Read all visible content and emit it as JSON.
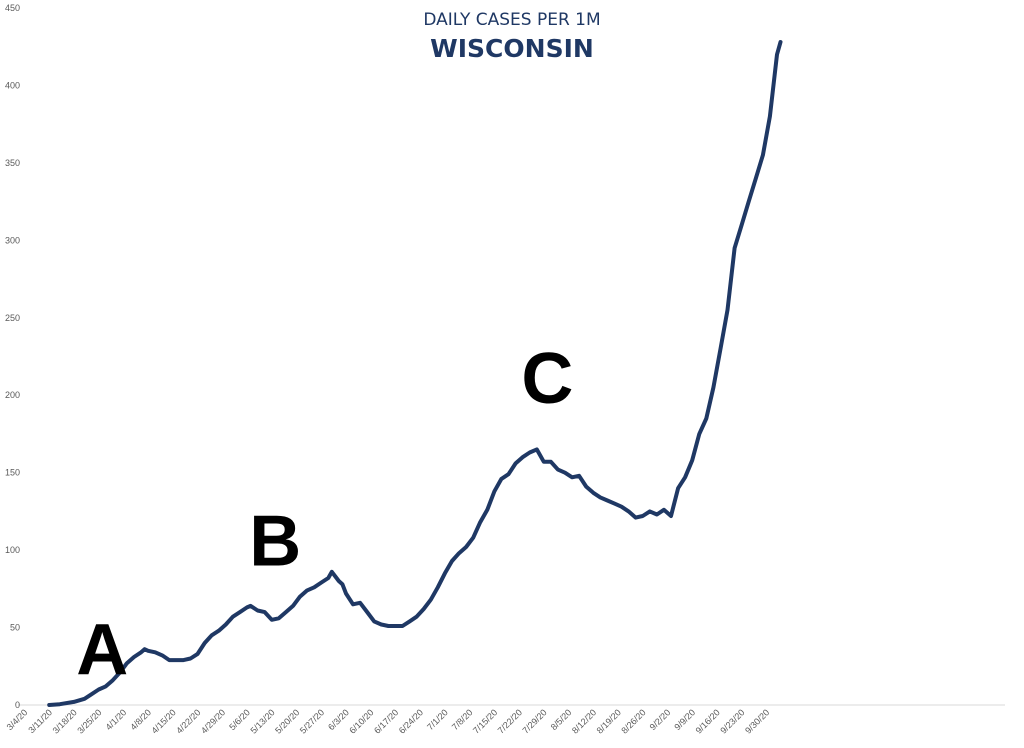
{
  "chart_data": {
    "type": "line",
    "title": "DAILY CASES PER 1M",
    "subtitle": "WISCONSIN",
    "ylim": [
      0,
      450
    ],
    "yticks": [
      0,
      50,
      100,
      150,
      200,
      250,
      300,
      350,
      400,
      450
    ],
    "x_tick_labels": [
      "3/4/20",
      "3/11/20",
      "3/18/20",
      "3/25/20",
      "4/1/20",
      "4/8/20",
      "4/15/20",
      "4/22/20",
      "4/29/20",
      "5/6/20",
      "5/13/20",
      "5/20/20",
      "5/27/20",
      "6/3/20",
      "6/10/20",
      "6/17/20",
      "6/24/20",
      "7/1/20",
      "7/8/20",
      "7/15/20",
      "7/22/20",
      "7/29/20",
      "8/5/20",
      "8/12/20",
      "8/19/20",
      "8/26/20",
      "9/2/20",
      "9/9/20",
      "9/16/20",
      "9/23/20",
      "9/30/20"
    ],
    "grid": false,
    "legend": "none",
    "line_color": "#1f3864",
    "annotations": [
      {
        "text": "A",
        "date": "3/25/20",
        "y": 20
      },
      {
        "text": "B",
        "date": "5/13/20",
        "y": 90
      },
      {
        "text": "C",
        "date": "7/29/20",
        "y": 195
      }
    ],
    "series": [
      {
        "x": [
          "3/10/20",
          "3/13/20",
          "3/17/20",
          "3/20/20",
          "3/22/20",
          "3/24/20",
          "3/26/20",
          "3/28/20",
          "3/30/20",
          "4/1/20",
          "4/3/20",
          "4/5/20",
          "4/6/20",
          "4/7/20",
          "4/9/20",
          "4/11/20",
          "4/13/20",
          "4/15/20",
          "4/17/20",
          "4/19/20",
          "4/21/20",
          "4/23/20",
          "4/25/20",
          "4/27/20",
          "4/29/20",
          "5/1/20",
          "5/3/20",
          "5/5/20",
          "5/6/20",
          "5/8/20",
          "5/10/20",
          "5/12/20",
          "5/14/20",
          "5/16/20",
          "5/18/20",
          "5/20/20",
          "5/22/20",
          "5/24/20",
          "5/26/20",
          "5/28/20",
          "5/29/20",
          "5/31/20",
          "6/1/20",
          "6/2/20",
          "6/4/20",
          "6/6/20",
          "6/8/20",
          "6/10/20",
          "6/12/20",
          "6/14/20",
          "6/16/20",
          "6/18/20",
          "6/20/20",
          "6/22/20",
          "6/24/20",
          "6/26/20",
          "6/28/20",
          "6/30/20",
          "7/2/20",
          "7/4/20",
          "7/6/20",
          "7/8/20",
          "7/10/20",
          "7/12/20",
          "7/14/20",
          "7/16/20",
          "7/18/20",
          "7/20/20",
          "7/22/20",
          "7/24/20",
          "7/26/20",
          "7/28/20",
          "7/30/20",
          "8/1/20",
          "8/3/20",
          "8/5/20",
          "8/7/20",
          "8/9/20",
          "8/11/20",
          "8/13/20",
          "8/15/20",
          "8/17/20",
          "8/19/20",
          "8/21/20",
          "8/23/20",
          "8/25/20",
          "8/27/20",
          "8/29/20",
          "8/31/20",
          "9/2/20",
          "9/4/20",
          "9/6/20",
          "9/8/20",
          "9/10/20",
          "9/12/20",
          "9/14/20",
          "9/16/20",
          "9/18/20",
          "9/20/20",
          "9/22/20",
          "9/24/20",
          "9/26/20",
          "9/28/20",
          "9/30/20",
          "10/2/20",
          "10/3/20"
        ],
        "y": [
          0,
          0.5,
          2,
          4,
          7,
          10,
          12,
          16,
          21,
          27,
          31,
          34,
          36,
          35,
          34,
          32,
          29,
          29,
          29,
          30,
          33,
          40,
          45,
          48,
          52,
          57,
          60,
          63,
          64,
          61,
          60,
          55,
          56,
          60,
          64,
          70,
          74,
          76,
          79,
          82,
          86,
          80,
          78,
          72,
          65,
          66,
          60,
          54,
          52,
          51,
          51,
          51,
          54,
          57,
          62,
          68,
          76,
          85,
          93,
          98,
          102,
          108,
          118,
          126,
          138,
          146,
          149,
          156,
          160,
          163,
          165,
          157,
          157,
          152,
          150,
          147,
          148,
          141,
          137,
          134,
          132,
          130,
          128,
          125,
          121,
          122,
          125,
          123,
          126,
          122,
          140,
          147,
          158,
          175,
          185,
          205,
          230,
          255,
          295,
          310,
          325,
          340,
          355,
          380,
          420,
          428
        ]
      }
    ]
  }
}
